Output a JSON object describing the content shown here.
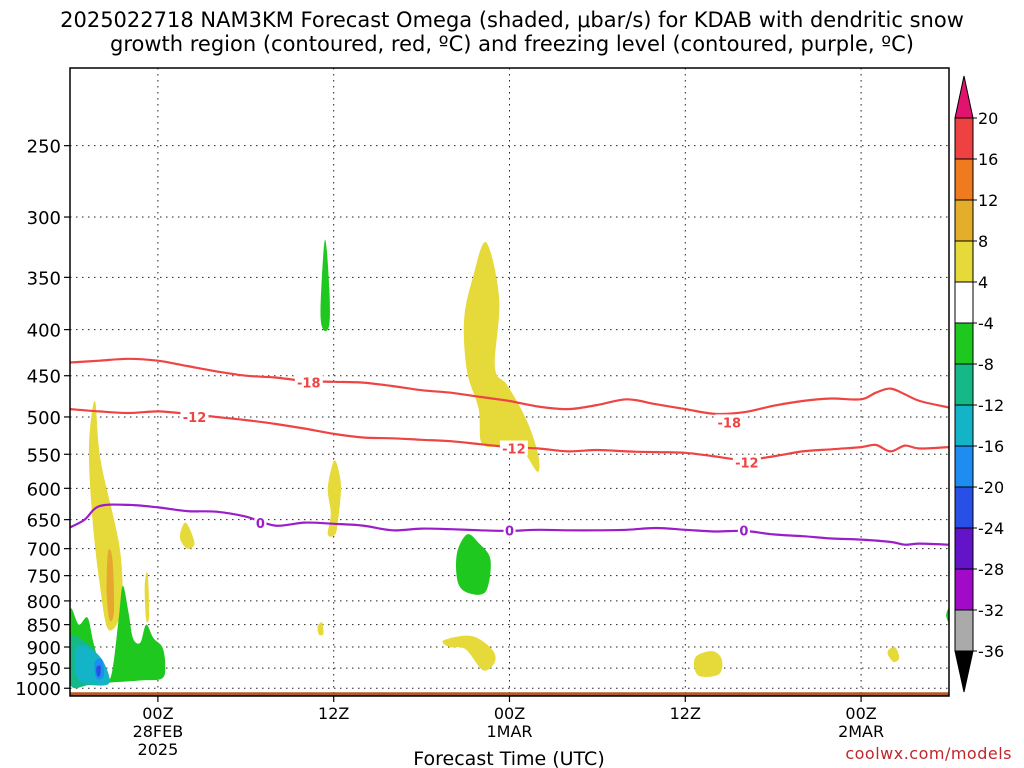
{
  "title_line1": "2025022718 NAM3KM Forecast Omega (shaded, μbar/s) for KDAB with dendritic snow",
  "title_line2": "growth region (contoured, red, ºC) and freezing level (contoured, purple, ºC)",
  "watermark": "coolwx.com/models",
  "chart_data": {
    "type": "time-height cross section",
    "xlabel": "Forecast Time (UTC)",
    "x_ticks": [
      {
        "hour": 6,
        "lines": [
          "00Z",
          "28FEB",
          "2025"
        ]
      },
      {
        "hour": 18,
        "lines": [
          "12Z"
        ]
      },
      {
        "hour": 30,
        "lines": [
          "00Z",
          "1MAR"
        ]
      },
      {
        "hour": 42,
        "lines": [
          "12Z"
        ]
      },
      {
        "hour": 54,
        "lines": [
          "00Z",
          "2MAR"
        ]
      }
    ],
    "xlim": [
      0,
      60
    ],
    "y_scale": "log",
    "y_ticks": [
      250,
      300,
      350,
      400,
      450,
      500,
      550,
      600,
      650,
      700,
      750,
      800,
      850,
      900,
      950,
      1000
    ],
    "ylim": [
      1020,
      205
    ],
    "grid": true,
    "colorbar": {
      "labels": [
        "20",
        "16",
        "12",
        "8",
        "4",
        "-4",
        "-8",
        "-12",
        "-16",
        "-20",
        "-24",
        "-28",
        "-32",
        "-36"
      ],
      "colors": [
        "#e0146e",
        "#ee4141",
        "#f07a1e",
        "#e4ae2a",
        "#e6d93a",
        "#ffffff",
        "#1ec81e",
        "#14b987",
        "#14b4c8",
        "#1e8cf0",
        "#2850e6",
        "#6414c8",
        "#a00ac8",
        "#aaaaaa",
        "#000000"
      ]
    },
    "contours": [
      {
        "label": "-18",
        "color": "#ee4444",
        "label_positions": [
          {
            "hour": 16.3,
            "p": 458
          },
          {
            "hour": 45,
            "p": 507
          }
        ],
        "points": [
          [
            0,
            435
          ],
          [
            2,
            433
          ],
          [
            4,
            431
          ],
          [
            6,
            433
          ],
          [
            8,
            439
          ],
          [
            10,
            445
          ],
          [
            12,
            450
          ],
          [
            14,
            452
          ],
          [
            16,
            456
          ],
          [
            18,
            457
          ],
          [
            20,
            458
          ],
          [
            22,
            462
          ],
          [
            24,
            467
          ],
          [
            26,
            470
          ],
          [
            28,
            475
          ],
          [
            30,
            480
          ],
          [
            32,
            487
          ],
          [
            34,
            490
          ],
          [
            36,
            485
          ],
          [
            38,
            478
          ],
          [
            40,
            484
          ],
          [
            42,
            490
          ],
          [
            44,
            496
          ],
          [
            46,
            494
          ],
          [
            48,
            486
          ],
          [
            50,
            480
          ],
          [
            52,
            477
          ],
          [
            54,
            478
          ],
          [
            55,
            470
          ],
          [
            56,
            465
          ],
          [
            57,
            472
          ],
          [
            58,
            480
          ],
          [
            60,
            488
          ]
        ]
      },
      {
        "label": "-12",
        "color": "#ee4444",
        "label_positions": [
          {
            "hour": 8.5,
            "p": 500
          },
          {
            "hour": 30.3,
            "p": 542
          },
          {
            "hour": 46.2,
            "p": 562
          }
        ],
        "points": [
          [
            0,
            490
          ],
          [
            2,
            493
          ],
          [
            4,
            495
          ],
          [
            6,
            493
          ],
          [
            8,
            496
          ],
          [
            10,
            500
          ],
          [
            12,
            504
          ],
          [
            14,
            509
          ],
          [
            16,
            515
          ],
          [
            18,
            522
          ],
          [
            20,
            527
          ],
          [
            22,
            528
          ],
          [
            24,
            530
          ],
          [
            26,
            532
          ],
          [
            28,
            536
          ],
          [
            30,
            540
          ],
          [
            32,
            542
          ],
          [
            34,
            546
          ],
          [
            36,
            544
          ],
          [
            38,
            546
          ],
          [
            40,
            547
          ],
          [
            42,
            548
          ],
          [
            44,
            553
          ],
          [
            46,
            558
          ],
          [
            48,
            553
          ],
          [
            50,
            546
          ],
          [
            52,
            543
          ],
          [
            54,
            540
          ],
          [
            55,
            537
          ],
          [
            56,
            546
          ],
          [
            57,
            538
          ],
          [
            58,
            542
          ],
          [
            60,
            540
          ]
        ]
      },
      {
        "label": "0",
        "color": "#9b1fc8",
        "label_positions": [
          {
            "hour": 13,
            "p": 656
          },
          {
            "hour": 30,
            "p": 668
          },
          {
            "hour": 46,
            "p": 668
          }
        ],
        "points": [
          [
            0,
            663
          ],
          [
            1,
            650
          ],
          [
            2,
            628
          ],
          [
            4,
            626
          ],
          [
            6,
            630
          ],
          [
            8,
            636
          ],
          [
            10,
            637
          ],
          [
            12,
            645
          ],
          [
            14,
            660
          ],
          [
            16,
            655
          ],
          [
            18,
            657
          ],
          [
            20,
            660
          ],
          [
            22,
            668
          ],
          [
            24,
            665
          ],
          [
            26,
            666
          ],
          [
            28,
            668
          ],
          [
            30,
            669
          ],
          [
            32,
            667
          ],
          [
            34,
            668
          ],
          [
            36,
            668
          ],
          [
            38,
            667
          ],
          [
            40,
            664
          ],
          [
            42,
            667
          ],
          [
            44,
            670
          ],
          [
            46,
            669
          ],
          [
            48,
            675
          ],
          [
            50,
            678
          ],
          [
            52,
            682
          ],
          [
            54,
            684
          ],
          [
            56,
            688
          ],
          [
            57,
            693
          ],
          [
            58,
            691
          ],
          [
            60,
            693
          ]
        ]
      }
    ],
    "omega_regions": [
      {
        "color": "#e6d93a",
        "points": [
          [
            1.5,
            640
          ],
          [
            1.3,
            540
          ],
          [
            1.7,
            480
          ],
          [
            2.1,
            560
          ],
          [
            3.4,
            700
          ],
          [
            3.5,
            820
          ],
          [
            2.6,
            860
          ],
          [
            2.0,
            760
          ]
        ]
      },
      {
        "color": "#e6a72e",
        "points": [
          [
            2.6,
            705
          ],
          [
            2.9,
            720
          ],
          [
            3.0,
            820
          ],
          [
            2.7,
            840
          ],
          [
            2.5,
            780
          ]
        ]
      },
      {
        "color": "#1ec81e",
        "points": [
          [
            0,
            820
          ],
          [
            0.6,
            850
          ],
          [
            1.2,
            835
          ],
          [
            1.6,
            890
          ],
          [
            2.2,
            960
          ],
          [
            2.8,
            970
          ],
          [
            3.3,
            845
          ],
          [
            3.6,
            770
          ],
          [
            4.0,
            825
          ],
          [
            4.3,
            880
          ],
          [
            4.8,
            890
          ],
          [
            5.2,
            850
          ],
          [
            5.7,
            880
          ],
          [
            6.3,
            900
          ],
          [
            6.5,
            940
          ],
          [
            6.3,
            975
          ],
          [
            5.0,
            980
          ],
          [
            3.0,
            985
          ],
          [
            1.3,
            990
          ],
          [
            0,
            985
          ]
        ]
      },
      {
        "color": "#14b987",
        "points": [
          [
            0,
            880
          ],
          [
            0.9,
            885
          ],
          [
            1.8,
            915
          ],
          [
            2.7,
            985
          ],
          [
            1.3,
            992
          ],
          [
            0,
            990
          ]
        ]
      },
      {
        "color": "#14b4c8",
        "points": [
          [
            0.4,
            905
          ],
          [
            1.2,
            900
          ],
          [
            2.2,
            930
          ],
          [
            2.7,
            985
          ],
          [
            1.6,
            990
          ],
          [
            0.5,
            975
          ]
        ]
      },
      {
        "color": "#1e8cf0",
        "points": [
          [
            1.7,
            935
          ],
          [
            2.2,
            930
          ],
          [
            2.3,
            970
          ],
          [
            1.8,
            975
          ]
        ]
      },
      {
        "color": "#2850e6",
        "points": [
          [
            1.8,
            948
          ],
          [
            2.1,
            945
          ],
          [
            2.05,
            968
          ],
          [
            1.85,
            968
          ]
        ]
      },
      {
        "color": "#1ec81e",
        "points": [
          [
            17.1,
            380
          ],
          [
            17.4,
            318
          ],
          [
            17.7,
            360
          ],
          [
            17.7,
            395
          ],
          [
            17.3,
            400
          ]
        ]
      },
      {
        "color": "#e6d93a",
        "points": [
          [
            17.8,
            640
          ],
          [
            17.6,
            600
          ],
          [
            18.0,
            560
          ],
          [
            18.3,
            570
          ],
          [
            18.5,
            600
          ],
          [
            18.3,
            650
          ],
          [
            18.1,
            675
          ],
          [
            17.6,
            675
          ]
        ]
      },
      {
        "color": "#e6d93a",
        "points": [
          [
            27.1,
            445
          ],
          [
            26.9,
            390
          ],
          [
            27.5,
            350
          ],
          [
            28.4,
            320
          ],
          [
            29.3,
            370
          ],
          [
            29.0,
            440
          ],
          [
            29.8,
            460
          ],
          [
            30.8,
            490
          ],
          [
            31.5,
            520
          ],
          [
            32.0,
            555
          ],
          [
            31.9,
            575
          ],
          [
            30.9,
            545
          ],
          [
            30.2,
            550
          ],
          [
            29.4,
            540
          ],
          [
            28.1,
            535
          ],
          [
            27.9,
            490
          ]
        ]
      },
      {
        "color": "#1ec81e",
        "points": [
          [
            26.4,
            710
          ],
          [
            27.1,
            675
          ],
          [
            27.9,
            690
          ],
          [
            28.7,
            720
          ],
          [
            28.4,
            780
          ],
          [
            27.3,
            785
          ],
          [
            26.5,
            765
          ]
        ]
      },
      {
        "color": "#e6d93a",
        "points": [
          [
            25.5,
            885
          ],
          [
            27.4,
            875
          ],
          [
            28.8,
            905
          ],
          [
            29.0,
            935
          ],
          [
            28.2,
            955
          ],
          [
            27.0,
            905
          ],
          [
            25.9,
            900
          ]
        ]
      },
      {
        "color": "#e6d93a",
        "points": [
          [
            42.8,
            920
          ],
          [
            43.9,
            910
          ],
          [
            44.5,
            930
          ],
          [
            44.3,
            965
          ],
          [
            43.0,
            970
          ],
          [
            42.6,
            945
          ]
        ]
      },
      {
        "color": "#e6d93a",
        "points": [
          [
            55.8,
            912
          ],
          [
            56.3,
            900
          ],
          [
            56.6,
            925
          ],
          [
            56.2,
            935
          ]
        ]
      },
      {
        "color": "#e6d93a",
        "points": [
          [
            7.5,
            680
          ],
          [
            7.9,
            655
          ],
          [
            8.5,
            690
          ],
          [
            8.0,
            700
          ]
        ]
      },
      {
        "color": "#e6d93a",
        "points": [
          [
            5.1,
            770
          ],
          [
            5.3,
            745
          ],
          [
            5.4,
            830
          ],
          [
            5.2,
            840
          ]
        ]
      },
      {
        "color": "#e6d93a",
        "points": [
          [
            16.9,
            855
          ],
          [
            17.2,
            845
          ],
          [
            17.3,
            870
          ],
          [
            17.0,
            872
          ]
        ]
      },
      {
        "color": "#1ec81e",
        "points": [
          [
            59.8,
            830
          ],
          [
            60,
            815
          ],
          [
            60,
            845
          ]
        ]
      }
    ],
    "terrain_color": "#b25a28"
  }
}
